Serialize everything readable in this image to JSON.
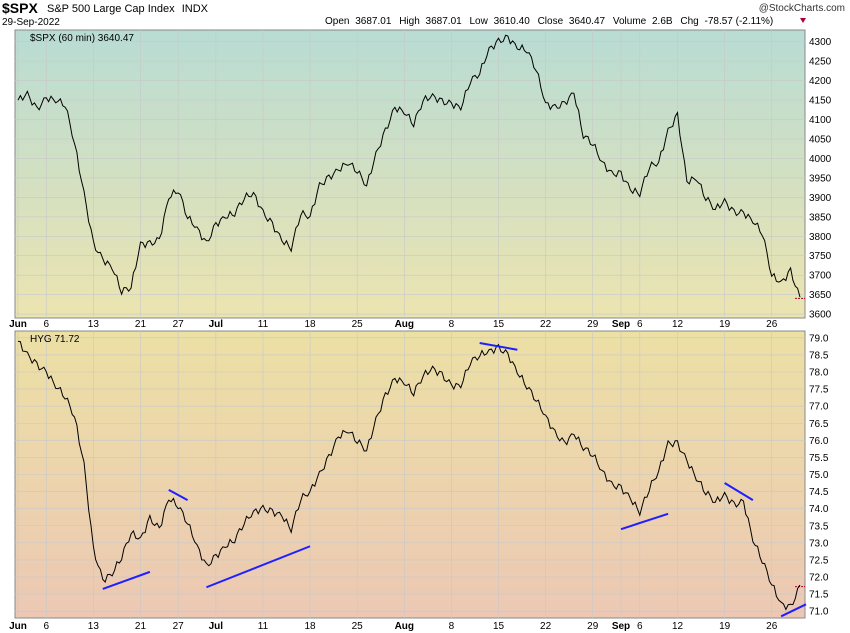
{
  "header": {
    "symbol": "$SPX",
    "name": "S&P 500 Large Cap Index",
    "exchange": "INDX",
    "date": "29-Sep-2022",
    "open_label": "Open",
    "open": "3687.01",
    "high_label": "High",
    "high": "3687.01",
    "low_label": "Low",
    "low": "3610.40",
    "close_label": "Close",
    "close": "3640.47",
    "volume_label": "Volume",
    "volume": "2.6B",
    "chg_label": "Chg",
    "chg": "-78.57 (-2.11%)",
    "credit": "@StockCharts.com"
  },
  "colors": {
    "price": "#000000",
    "trendline": "#1f1fff",
    "down_arrow": "#aa0033",
    "spx_bg_top": "#b8dcd4",
    "spx_bg_bottom": "#ece4b0",
    "hyg_bg_top": "#ece0a4",
    "hyg_bg_bottom": "#ecc8b4"
  },
  "x_axis": {
    "labels": [
      "Jun",
      "6",
      "13",
      "21",
      "27",
      "Jul",
      "11",
      "18",
      "25",
      "Aug",
      "8",
      "15",
      "22",
      "29",
      "Sep",
      "6",
      "12",
      "19",
      "26"
    ],
    "bold": [
      "Jun",
      "Jul",
      "Aug",
      "Sep"
    ]
  },
  "chart_data": [
    {
      "type": "line",
      "series": [
        {
          "name": "$SPX (60 min)",
          "last": "3640.47"
        }
      ],
      "label": "$SPX (60 min) 3640.47",
      "ylim": [
        3590,
        4330
      ],
      "yticks": [
        "3600",
        "3650",
        "3700",
        "3750",
        "3800",
        "3850",
        "3900",
        "3950",
        "4000",
        "4050",
        "4100",
        "4150",
        "4200",
        "4250",
        "4300"
      ],
      "x": [
        "Jun 1",
        "Jun 2",
        "Jun 3",
        "Jun 6",
        "Jun 7",
        "Jun 8",
        "Jun 9",
        "Jun 10",
        "Jun 13",
        "Jun 14",
        "Jun 15",
        "Jun 16",
        "Jun 17",
        "Jun 21",
        "Jun 22",
        "Jun 23",
        "Jun 24",
        "Jun 27",
        "Jun 28",
        "Jun 29",
        "Jun 30",
        "Jul 1",
        "Jul 5",
        "Jul 6",
        "Jul 7",
        "Jul 8",
        "Jul 11",
        "Jul 12",
        "Jul 13",
        "Jul 14",
        "Jul 15",
        "Jul 18",
        "Jul 19",
        "Jul 20",
        "Jul 21",
        "Jul 22",
        "Jul 25",
        "Jul 26",
        "Jul 27",
        "Jul 28",
        "Jul 29",
        "Aug 1",
        "Aug 2",
        "Aug 3",
        "Aug 4",
        "Aug 5",
        "Aug 8",
        "Aug 9",
        "Aug 10",
        "Aug 11",
        "Aug 12",
        "Aug 15",
        "Aug 16",
        "Aug 17",
        "Aug 18",
        "Aug 19",
        "Aug 22",
        "Aug 23",
        "Aug 24",
        "Aug 25",
        "Aug 26",
        "Aug 29",
        "Aug 30",
        "Aug 31",
        "Sep 1",
        "Sep 2",
        "Sep 6",
        "Sep 7",
        "Sep 8",
        "Sep 9",
        "Sep 12",
        "Sep 13",
        "Sep 14",
        "Sep 15",
        "Sep 16",
        "Sep 19",
        "Sep 20",
        "Sep 21",
        "Sep 22",
        "Sep 23",
        "Sep 26",
        "Sep 27",
        "Sep 28",
        "Sep 29"
      ],
      "y": [
        4150,
        4165,
        4125,
        4155,
        4150,
        4140,
        4040,
        3910,
        3780,
        3740,
        3720,
        3660,
        3670,
        3780,
        3780,
        3790,
        3900,
        3920,
        3850,
        3820,
        3780,
        3830,
        3850,
        3860,
        3900,
        3910,
        3860,
        3830,
        3790,
        3770,
        3860,
        3850,
        3930,
        3950,
        3970,
        3990,
        3970,
        3930,
        4010,
        4070,
        4130,
        4120,
        4090,
        4150,
        4160,
        4145,
        4140,
        4130,
        4200,
        4220,
        4280,
        4300,
        4310,
        4285,
        4280,
        4230,
        4140,
        4130,
        4140,
        4170,
        4060,
        4040,
        3990,
        3960,
        3960,
        3920,
        3910,
        3980,
        3990,
        4070,
        4110,
        3940,
        3950,
        3900,
        3870,
        3890,
        3860,
        3860,
        3840,
        3810,
        3700,
        3680,
        3710,
        3640
      ]
    },
    {
      "type": "line",
      "series": [
        {
          "name": "HYG",
          "last": "71.72"
        }
      ],
      "label": "HYG 71.72",
      "ylim": [
        70.8,
        79.2
      ],
      "yticks": [
        "71.0",
        "71.5",
        "72.0",
        "72.5",
        "73.0",
        "73.5",
        "74.0",
        "74.5",
        "75.0",
        "75.5",
        "76.0",
        "76.5",
        "77.0",
        "77.5",
        "78.0",
        "78.5",
        "79.0"
      ],
      "x": [
        "Jun 1",
        "Jun 2",
        "Jun 3",
        "Jun 6",
        "Jun 7",
        "Jun 8",
        "Jun 9",
        "Jun 10",
        "Jun 13",
        "Jun 14",
        "Jun 15",
        "Jun 16",
        "Jun 17",
        "Jun 21",
        "Jun 22",
        "Jun 23",
        "Jun 24",
        "Jun 27",
        "Jun 28",
        "Jun 29",
        "Jun 30",
        "Jul 1",
        "Jul 5",
        "Jul 6",
        "Jul 7",
        "Jul 8",
        "Jul 11",
        "Jul 12",
        "Jul 13",
        "Jul 14",
        "Jul 15",
        "Jul 18",
        "Jul 19",
        "Jul 20",
        "Jul 21",
        "Jul 22",
        "Jul 25",
        "Jul 26",
        "Jul 27",
        "Jul 28",
        "Jul 29",
        "Aug 1",
        "Aug 2",
        "Aug 3",
        "Aug 4",
        "Aug 5",
        "Aug 8",
        "Aug 9",
        "Aug 10",
        "Aug 11",
        "Aug 12",
        "Aug 15",
        "Aug 16",
        "Aug 17",
        "Aug 18",
        "Aug 19",
        "Aug 22",
        "Aug 23",
        "Aug 24",
        "Aug 25",
        "Aug 26",
        "Aug 29",
        "Aug 30",
        "Aug 31",
        "Sep 1",
        "Sep 2",
        "Sep 6",
        "Sep 7",
        "Sep 8",
        "Sep 9",
        "Sep 12",
        "Sep 13",
        "Sep 14",
        "Sep 15",
        "Sep 16",
        "Sep 19",
        "Sep 20",
        "Sep 21",
        "Sep 22",
        "Sep 23",
        "Sep 26",
        "Sep 27",
        "Sep 28",
        "Sep 29"
      ],
      "y": [
        78.9,
        78.5,
        78.2,
        78.0,
        77.6,
        77.3,
        76.7,
        75.3,
        72.8,
        71.9,
        72.1,
        72.6,
        73.3,
        73.1,
        73.7,
        73.4,
        74.3,
        74.1,
        73.6,
        72.9,
        72.3,
        72.6,
        72.9,
        73.1,
        73.6,
        73.9,
        74.0,
        73.9,
        73.8,
        73.4,
        74.3,
        74.5,
        75.0,
        75.5,
        76.1,
        76.3,
        76.0,
        75.7,
        76.6,
        77.3,
        77.8,
        77.7,
        77.4,
        77.9,
        78.1,
        77.9,
        77.6,
        77.6,
        78.3,
        78.5,
        78.6,
        78.7,
        78.5,
        78.0,
        77.6,
        77.2,
        76.7,
        76.2,
        75.9,
        76.2,
        75.8,
        75.6,
        75.1,
        74.7,
        74.6,
        74.3,
        73.9,
        74.6,
        75.1,
        75.9,
        75.9,
        75.4,
        74.9,
        74.5,
        74.2,
        74.4,
        74.1,
        74.2,
        73.1,
        72.5,
        71.8,
        71.2,
        71.1,
        71.72
      ]
    }
  ]
}
